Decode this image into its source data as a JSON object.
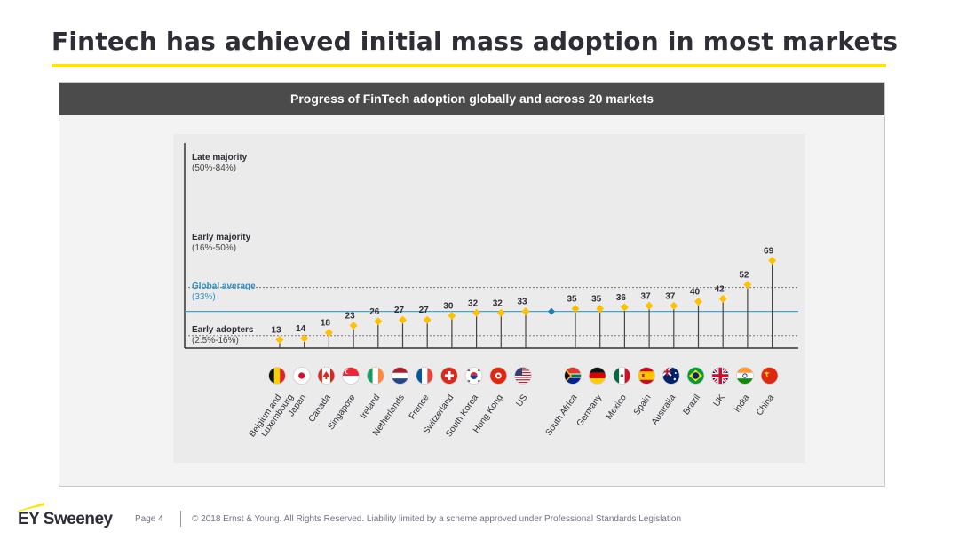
{
  "slide": {
    "title": "Fintech has achieved initial mass adoption in most markets"
  },
  "chart_header": "Progress of FinTech adoption globally and across 20 markets",
  "chart_data": {
    "type": "lollipop",
    "title": "Progress of FinTech adoption globally and across 20 markets",
    "unit": "%",
    "ylim": [
      0,
      84
    ],
    "bands": [
      {
        "name": "Late majority",
        "range": "(50%-84%)",
        "y": 84
      },
      {
        "name": "Early majority",
        "range": "(16%-50%)",
        "y": 50
      },
      {
        "name": "Global average",
        "range": "(33%)",
        "y": 33
      },
      {
        "name": "Early adopters",
        "range": "(2.5%-16%)",
        "y": 16
      }
    ],
    "groups": [
      {
        "categories": [
          "Belgium and Luxembourg",
          "Japan",
          "Canada",
          "Singapore",
          "Ireland",
          "Netherlands",
          "France",
          "Switzerland",
          "South Korea",
          "Hong Kong",
          "US"
        ],
        "values": [
          13,
          14,
          18,
          23,
          26,
          27,
          27,
          30,
          32,
          32,
          33
        ]
      },
      {
        "categories": [
          "South Africa",
          "Germany",
          "Mexico",
          "Spain",
          "Australia",
          "Brazil",
          "UK",
          "India",
          "China"
        ],
        "values": [
          35,
          35,
          36,
          37,
          37,
          40,
          42,
          52,
          69
        ]
      }
    ],
    "global_average": 33,
    "colors": {
      "marker": "#ffc000",
      "stem": "#444444",
      "average_line": "#4aa3c9",
      "average_text": "#2e8fc0",
      "average_marker": "#1f7fb0"
    }
  },
  "flags": [
    "flag-belgium-luxembourg",
    "flag-japan",
    "flag-canada",
    "flag-singapore",
    "flag-ireland",
    "flag-netherlands",
    "flag-france",
    "flag-switzerland",
    "flag-south-korea",
    "flag-hong-kong",
    "flag-us",
    "flag-south-africa",
    "flag-germany",
    "flag-mexico",
    "flag-spain",
    "flag-australia",
    "flag-brazil",
    "flag-uk",
    "flag-india",
    "flag-china"
  ],
  "footer": {
    "logo": "EY Sweeney",
    "page": "Page 4",
    "copyright": "© 2018 Ernst & Young. All Rights Reserved. Liability limited by a scheme approved under Professional Standards Legislation"
  }
}
